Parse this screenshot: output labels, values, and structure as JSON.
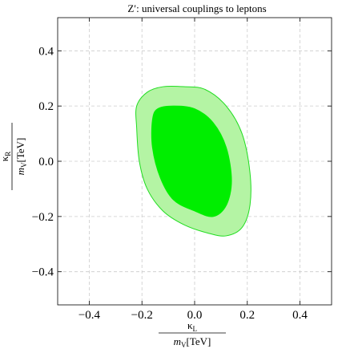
{
  "chart_data": {
    "type": "contour",
    "title": "Z′: universal couplings to leptons",
    "xlabel": {
      "num": "κ",
      "num_sub": "L",
      "den": "m",
      "den_sub": "V",
      "den_unit": "[TeV]"
    },
    "ylabel": {
      "num": "κ",
      "num_sub": "R",
      "den": "m",
      "den_sub": "V",
      "den_unit": "[TeV]"
    },
    "xlim": [
      -0.52,
      0.52
    ],
    "ylim": [
      -0.52,
      0.52
    ],
    "xticks": [
      -0.4,
      -0.2,
      0.0,
      0.2,
      0.4
    ],
    "yticks": [
      -0.4,
      -0.2,
      0.0,
      0.2,
      0.4
    ],
    "xtick_labels": [
      "−0.4",
      "−0.2",
      "0.0",
      "0.2",
      "0.4"
    ],
    "ytick_labels": [
      "−0.4",
      "−0.2",
      "0.0",
      "0.2",
      "0.4"
    ],
    "grid": true,
    "series": [
      {
        "fill": "#b4f4a4",
        "stroke": "#22dd22",
        "points": [
          [
            -0.22,
            0.2
          ],
          [
            -0.22,
            0.12
          ],
          [
            -0.21,
            0.0
          ],
          [
            -0.18,
            -0.1
          ],
          [
            -0.12,
            -0.18
          ],
          [
            -0.04,
            -0.23
          ],
          [
            0.05,
            -0.26
          ],
          [
            0.12,
            -0.27
          ],
          [
            0.18,
            -0.24
          ],
          [
            0.21,
            -0.16
          ],
          [
            0.21,
            -0.04
          ],
          [
            0.18,
            0.1
          ],
          [
            0.12,
            0.2
          ],
          [
            0.04,
            0.26
          ],
          [
            -0.04,
            0.27
          ],
          [
            -0.12,
            0.27
          ],
          [
            -0.18,
            0.25
          ]
        ]
      },
      {
        "fill": "#00ee00",
        "stroke": "#00ee00",
        "points": [
          [
            -0.16,
            0.15
          ],
          [
            -0.16,
            0.05
          ],
          [
            -0.13,
            -0.06
          ],
          [
            -0.08,
            -0.14
          ],
          [
            0.0,
            -0.18
          ],
          [
            0.07,
            -0.2
          ],
          [
            0.12,
            -0.16
          ],
          [
            0.14,
            -0.07
          ],
          [
            0.12,
            0.05
          ],
          [
            0.07,
            0.14
          ],
          [
            0.0,
            0.19
          ],
          [
            -0.08,
            0.2
          ],
          [
            -0.14,
            0.19
          ]
        ]
      }
    ]
  }
}
